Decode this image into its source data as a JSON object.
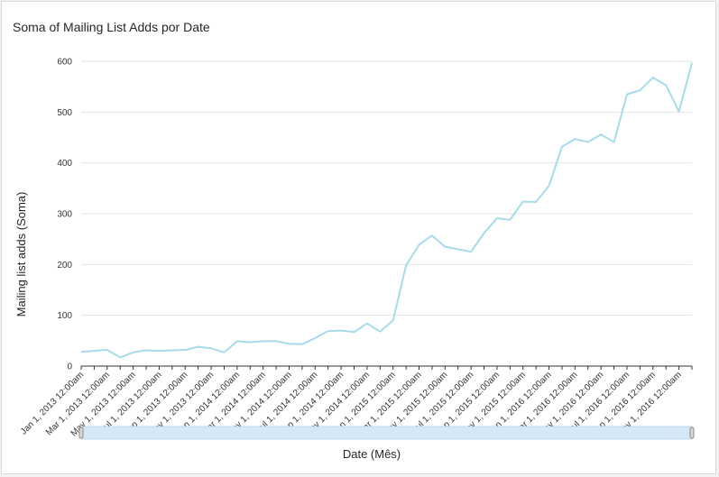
{
  "chart_data": {
    "type": "line",
    "title": "Soma of Mailing List Adds por Date",
    "xlabel": "Date (Mês)",
    "ylabel": "Mailing list adds (Soma)",
    "ylim": [
      0,
      600
    ],
    "yticks": [
      "0",
      "100",
      "200",
      "300",
      "400",
      "500",
      "600"
    ],
    "grid": true,
    "line_color": "#a6dcea",
    "x": [
      "Jan 1, 2013 12:00am",
      "Feb 1, 2013 12:00am",
      "Mar 1, 2013 12:00am",
      "Apr 1, 2013 12:00am",
      "May 1, 2013 12:00am",
      "Jun 1, 2013 12:00am",
      "Jul 1, 2013 12:00am",
      "Aug 1, 2013 12:00am",
      "Sep 1, 2013 12:00am",
      "Oct 1, 2013 12:00am",
      "Nov 1, 2013 12:00am",
      "Dec 1, 2013 12:00am",
      "Jan 1, 2014 12:00am",
      "Feb 1, 2014 12:00am",
      "Mar 1, 2014 12:00am",
      "Apr 1, 2014 12:00am",
      "May 1, 2014 12:00am",
      "Jun 1, 2014 12:00am",
      "Jul 1, 2014 12:00am",
      "Aug 1, 2014 12:00am",
      "Sep 1, 2014 12:00am",
      "Oct 1, 2014 12:00am",
      "Nov 1, 2014 12:00am",
      "Dec 1, 2014 12:00am",
      "Jan 1, 2015 12:00am",
      "Feb 1, 2015 12:00am",
      "Mar 1, 2015 12:00am",
      "Apr 1, 2015 12:00am",
      "May 1, 2015 12:00am",
      "Jun 1, 2015 12:00am",
      "Jul 1, 2015 12:00am",
      "Aug 1, 2015 12:00am",
      "Sep 1, 2015 12:00am",
      "Oct 1, 2015 12:00am",
      "Nov 1, 2015 12:00am",
      "Dec 1, 2015 12:00am",
      "Jan 1, 2016 12:00am",
      "Feb 1, 2016 12:00am",
      "Mar 1, 2016 12:00am",
      "Apr 1, 2016 12:00am",
      "May 1, 2016 12:00am",
      "Jun 1, 2016 12:00am",
      "Jul 1, 2016 12:00am",
      "Aug 1, 2016 12:00am",
      "Sep 1, 2016 12:00am",
      "Oct 1, 2016 12:00am",
      "Nov 1, 2016 12:00am",
      "Dec 1, 2016 12:00am"
    ],
    "values": [
      28,
      30,
      32,
      17,
      27,
      31,
      30,
      31,
      32,
      38,
      35,
      27,
      49,
      47,
      49,
      49,
      44,
      43,
      55,
      69,
      70,
      67,
      84,
      68,
      90,
      198,
      239,
      257,
      235,
      230,
      225,
      262,
      291,
      288,
      324,
      323,
      355,
      432,
      447,
      441,
      456,
      441,
      535,
      543,
      568,
      553,
      501,
      597
    ]
  },
  "range_slider": {
    "start": 0,
    "end": 1
  }
}
